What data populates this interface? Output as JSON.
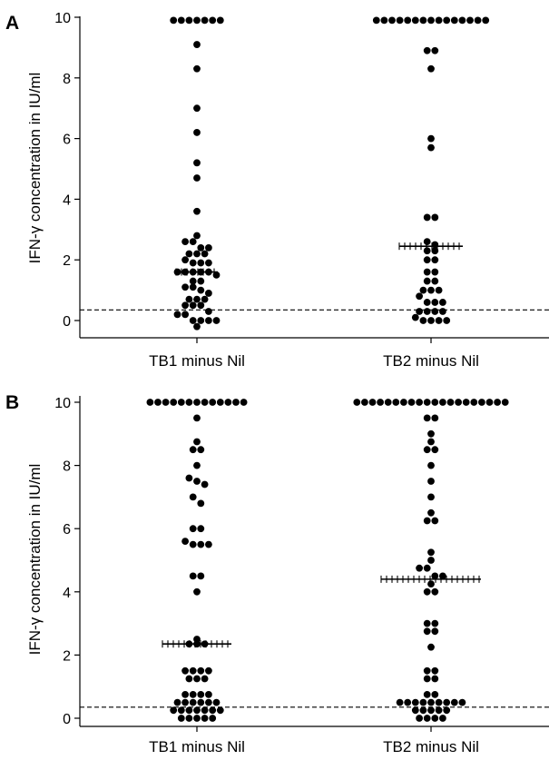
{
  "figure": {
    "panels": [
      {
        "label": "A",
        "ylabel": "IFN-γ concentration in IU/ml"
      },
      {
        "label": "B",
        "ylabel": "IFN-γ concentration in IU/ml"
      }
    ]
  },
  "chart_data": [
    {
      "type": "scatter",
      "panel": "A",
      "categories": [
        "TB1 minus Nil",
        "TB2 minus Nil"
      ],
      "ylabel": "IFN-γ concentration in IU/ml",
      "ylim": [
        -0.5,
        10.2
      ],
      "yticks": [
        0,
        2,
        4,
        6,
        8,
        10
      ],
      "cutoff_line": 0.35,
      "cutoff_style": "dashed",
      "series": [
        {
          "category": "TB1 minus Nil",
          "median": 1.6,
          "values": [
            9.9,
            9.9,
            9.9,
            9.9,
            9.9,
            9.9,
            9.9,
            9.1,
            8.3,
            7.0,
            6.2,
            5.2,
            4.7,
            3.6,
            2.8,
            2.6,
            2.6,
            2.4,
            2.4,
            2.2,
            2.2,
            2.2,
            2.0,
            1.9,
            1.9,
            1.9,
            1.6,
            1.6,
            1.6,
            1.6,
            1.6,
            1.5,
            1.3,
            1.3,
            1.1,
            1.1,
            1.0,
            0.9,
            0.7,
            0.7,
            0.7,
            0.5,
            0.5,
            0.5,
            0.3,
            0.2,
            0.2,
            0.0,
            0.0,
            0.0,
            0.0,
            -0.2
          ]
        },
        {
          "category": "TB2 minus Nil",
          "median": 2.45,
          "values": [
            9.9,
            9.9,
            9.9,
            9.9,
            9.9,
            9.9,
            9.9,
            9.9,
            9.9,
            9.9,
            9.9,
            9.9,
            9.9,
            9.9,
            9.9,
            8.9,
            8.9,
            8.3,
            6.0,
            5.7,
            3.4,
            3.4,
            2.6,
            2.5,
            2.3,
            2.3,
            2.0,
            2.0,
            1.6,
            1.6,
            1.3,
            1.3,
            1.0,
            1.0,
            1.0,
            0.8,
            0.6,
            0.6,
            0.6,
            0.3,
            0.3,
            0.3,
            0.3,
            0.1,
            0.0,
            0.0,
            0.0,
            0.0
          ]
        }
      ]
    },
    {
      "type": "scatter",
      "panel": "B",
      "categories": [
        "TB1 minus Nil",
        "TB2 minus Nil"
      ],
      "ylabel": "IFN-γ concentration in IU/ml",
      "ylim": [
        -0.15,
        10.1
      ],
      "yticks": [
        0,
        2,
        4,
        6,
        8,
        10
      ],
      "cutoff_line": 0.35,
      "cutoff_style": "dashed",
      "series": [
        {
          "category": "TB1 minus Nil",
          "median": 2.35,
          "values": [
            10,
            10,
            10,
            10,
            10,
            10,
            10,
            10,
            10,
            10,
            10,
            10,
            10,
            9.5,
            8.75,
            8.5,
            8.5,
            8.0,
            7.6,
            7.5,
            7.4,
            7.0,
            6.8,
            6.0,
            6.0,
            5.6,
            5.5,
            5.5,
            5.5,
            4.5,
            4.5,
            4.0,
            2.5,
            2.35,
            2.35,
            2.35,
            1.5,
            1.5,
            1.5,
            1.5,
            1.25,
            1.25,
            1.25,
            0.75,
            0.75,
            0.75,
            0.75,
            0.5,
            0.5,
            0.5,
            0.5,
            0.5,
            0.5,
            0.25,
            0.25,
            0.25,
            0.25,
            0.25,
            0.25,
            0.25,
            0.0,
            0.0,
            0.0,
            0.0,
            0.0
          ]
        },
        {
          "category": "TB2 minus Nil",
          "median": 4.4,
          "values": [
            10,
            10,
            10,
            10,
            10,
            10,
            10,
            10,
            10,
            10,
            10,
            10,
            10,
            10,
            10,
            10,
            10,
            10,
            10,
            10,
            9.5,
            9.5,
            9.0,
            8.75,
            8.5,
            8.5,
            8.0,
            7.5,
            7.0,
            6.5,
            6.25,
            6.25,
            5.25,
            5.0,
            4.75,
            4.75,
            4.5,
            4.5,
            4.25,
            4.0,
            4.0,
            3.0,
            3.0,
            2.75,
            2.75,
            2.25,
            1.5,
            1.5,
            1.25,
            1.25,
            0.75,
            0.75,
            0.5,
            0.5,
            0.5,
            0.5,
            0.5,
            0.5,
            0.5,
            0.5,
            0.5,
            0.25,
            0.25,
            0.25,
            0.25,
            0.25,
            0.0,
            0.0,
            0.0,
            0.0
          ]
        }
      ]
    }
  ]
}
